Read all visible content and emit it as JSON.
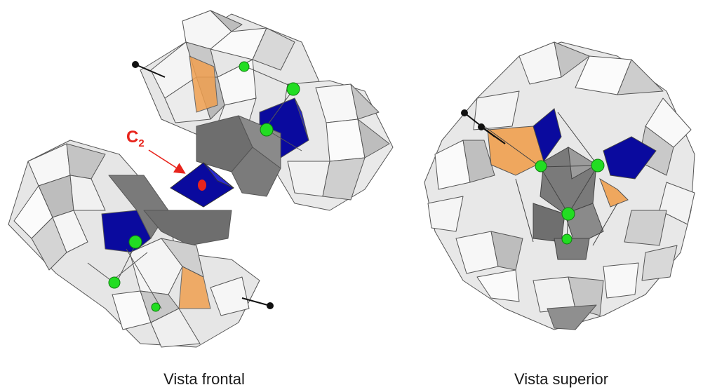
{
  "captions": {
    "left": "Vista frontal",
    "right": "Vista superior"
  },
  "annotation": {
    "symbol": "C",
    "subscript": "2"
  },
  "colors": {
    "octahedron_light": "#f2f2f2",
    "octahedron_shade": "#cfcfcf",
    "octahedron_dark": "#8a8a8a",
    "central_dark": "#6b6b6b",
    "blue_center": "#0a0a9e",
    "orange_unit": "#f0a050",
    "green_atom": "#22dd22",
    "red_axis": "#e8241c",
    "edge": "#555555"
  }
}
